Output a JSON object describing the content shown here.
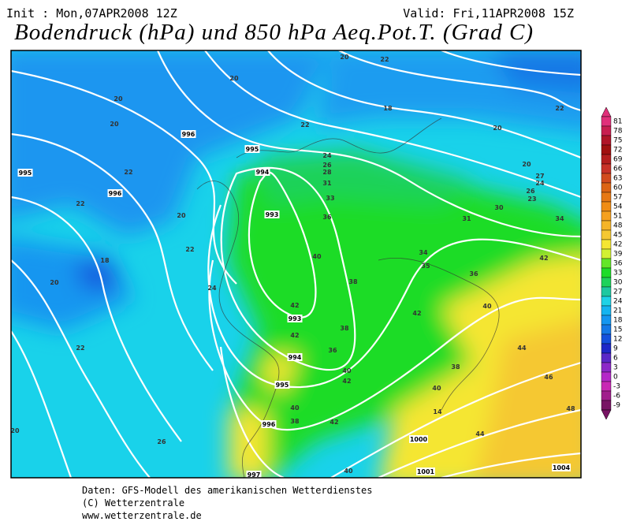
{
  "header": {
    "init": "Init : Mon,07APR2008 12Z",
    "valid": "Valid: Fri,11APR2008 15Z",
    "title": "Bodendruck (hPa) und 850 hPa Aeq.Pot.T. (Grad C)"
  },
  "colorbar": {
    "labels": [
      81,
      78,
      75,
      72,
      69,
      66,
      63,
      60,
      57,
      54,
      51,
      48,
      45,
      42,
      39,
      36,
      33,
      30,
      27,
      24,
      21,
      18,
      15,
      12,
      9,
      6,
      3,
      0,
      -3,
      -6,
      -9
    ],
    "colors": [
      "#e0307a",
      "#c81e50",
      "#b01428",
      "#a01010",
      "#b41e1e",
      "#c83228",
      "#d24b1e",
      "#dc6414",
      "#e67814",
      "#f08c14",
      "#f5a01e",
      "#f5b428",
      "#f5c832",
      "#f5e632",
      "#d2f032",
      "#64e628",
      "#1edc28",
      "#1ed25a",
      "#1ec8a0",
      "#1ed2e6",
      "#14b4f0",
      "#1496f0",
      "#1478e6",
      "#1450dc",
      "#1e28c8",
      "#5a28c8",
      "#8c28c8",
      "#b428c8",
      "#c828b4",
      "#a01e8c",
      "#781464"
    ]
  },
  "map": {
    "contour_labels": [
      "996",
      "995",
      "994",
      "993",
      "993",
      "994",
      "995",
      "996",
      "995",
      "996",
      "997",
      "1000",
      "1001",
      "1004",
      "20",
      "20",
      "20",
      "22",
      "22",
      "22",
      "20",
      "22",
      "18",
      "20",
      "24",
      "22",
      "20",
      "26",
      "20",
      "22",
      "18",
      "22",
      "20",
      "20",
      "24",
      "26",
      "28",
      "31",
      "33",
      "36",
      "40",
      "38",
      "42",
      "42",
      "38",
      "36",
      "40",
      "42",
      "38",
      "40",
      "40",
      "38",
      "42",
      "40",
      "31",
      "30",
      "34",
      "34",
      "35",
      "36",
      "40",
      "42",
      "42",
      "44",
      "46",
      "48",
      "44",
      "14",
      "26",
      "23",
      "24",
      "27"
    ]
  },
  "footer": {
    "lines": [
      "Daten: GFS-Modell des amerikanischen Wetterdienstes",
      "(C) Wetterzentrale",
      "www.wetterzentrale.de"
    ]
  }
}
